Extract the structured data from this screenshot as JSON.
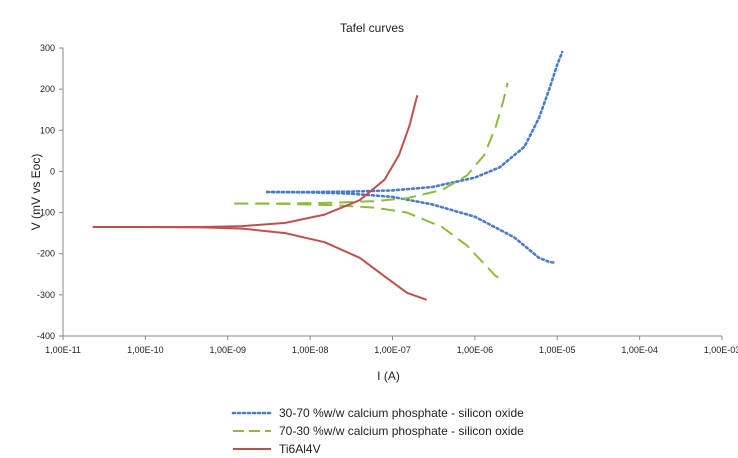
{
  "chart_data": {
    "type": "line",
    "title": "Tafel curves",
    "xlabel": "I (A)",
    "ylabel": "V (mV vs Eoc)",
    "x_scale": "log",
    "xlim": [
      1e-11,
      0.001
    ],
    "ylim": [
      -400,
      300
    ],
    "x_tick_labels": [
      "1,00E-11",
      "1,00E-10",
      "1,00E-09",
      "1,00E-08",
      "1,00E-07",
      "1,00E-06",
      "1,00E-05",
      "1,00E-04",
      "1,00E-03"
    ],
    "y_ticks": [
      300,
      200,
      100,
      0,
      -100,
      -200,
      -300,
      -400
    ],
    "legend_position": "bottom",
    "grid": false,
    "series": [
      {
        "name": "30-70 %w/w calcium phosphate - silicon oxide",
        "color": "#4a7cc9",
        "style": "dotted",
        "anodic": [
          [
            3e-09,
            -50
          ],
          [
            1e-08,
            -50
          ],
          [
            3e-08,
            -49
          ],
          [
            1e-07,
            -46
          ],
          [
            3e-07,
            -38
          ],
          [
            1e-06,
            -15
          ],
          [
            2e-06,
            10
          ],
          [
            4e-06,
            60
          ],
          [
            6e-06,
            130
          ],
          [
            8e-06,
            200
          ],
          [
            1e-05,
            260
          ],
          [
            1.15e-05,
            290
          ]
        ],
        "cathodic": [
          [
            3e-09,
            -50
          ],
          [
            1e-08,
            -51
          ],
          [
            3e-08,
            -54
          ],
          [
            1e-07,
            -62
          ],
          [
            3e-07,
            -80
          ],
          [
            1e-06,
            -110
          ],
          [
            3e-06,
            -160
          ],
          [
            6e-06,
            -210
          ],
          [
            8e-06,
            -220
          ],
          [
            9.5e-06,
            -222
          ]
        ]
      },
      {
        "name": "70-30 %w/w calcium phosphate - silicon oxide",
        "color": "#8dbb3f",
        "style": "dashed",
        "anodic": [
          [
            1.2e-09,
            -78
          ],
          [
            5e-09,
            -78
          ],
          [
            2e-08,
            -76
          ],
          [
            6e-08,
            -72
          ],
          [
            1.5e-07,
            -65
          ],
          [
            4e-07,
            -45
          ],
          [
            8e-07,
            -10
          ],
          [
            1.3e-06,
            40
          ],
          [
            1.8e-06,
            110
          ],
          [
            2.2e-06,
            170
          ],
          [
            2.5e-06,
            215
          ]
        ],
        "cathodic": [
          [
            1.2e-09,
            -78
          ],
          [
            5e-09,
            -79
          ],
          [
            2e-08,
            -82
          ],
          [
            6e-08,
            -88
          ],
          [
            1.5e-07,
            -100
          ],
          [
            4e-07,
            -135
          ],
          [
            8e-07,
            -180
          ],
          [
            1.3e-06,
            -225
          ],
          [
            1.8e-06,
            -255
          ],
          [
            2.2e-06,
            -262
          ]
        ]
      },
      {
        "name": "Ti6Al4V",
        "color": "#c0504d",
        "style": "solid",
        "anodic": [
          [
            2.3e-11,
            -135
          ],
          [
            1e-10,
            -135
          ],
          [
            5e-10,
            -135
          ],
          [
            1.5e-09,
            -133
          ],
          [
            5e-09,
            -125
          ],
          [
            1.5e-08,
            -105
          ],
          [
            4e-08,
            -70
          ],
          [
            8e-08,
            -20
          ],
          [
            1.2e-07,
            40
          ],
          [
            1.6e-07,
            110
          ],
          [
            2e-07,
            185
          ]
        ],
        "cathodic": [
          [
            2.3e-11,
            -135
          ],
          [
            1e-10,
            -135
          ],
          [
            5e-10,
            -136
          ],
          [
            1.5e-09,
            -139
          ],
          [
            5e-09,
            -150
          ],
          [
            1.5e-08,
            -172
          ],
          [
            4e-08,
            -210
          ],
          [
            8e-08,
            -255
          ],
          [
            1.5e-07,
            -295
          ],
          [
            2.6e-07,
            -312
          ]
        ]
      }
    ]
  }
}
